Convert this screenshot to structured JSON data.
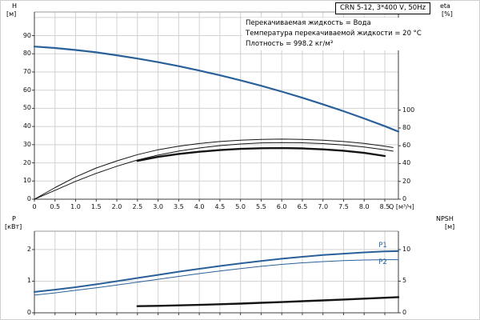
{
  "title_box": {
    "text": "CRN 5-12, 3*400 V, 50Hz"
  },
  "annotations": [
    "Перекачиваемая жидкость = Вода",
    "Температура перекачиваемой жидкости = 20 °C",
    "Плотность = 998.2 кг/м³"
  ],
  "colors": {
    "curve_blue": "#2a6099",
    "curve_black": "#141414",
    "grid": "#d2d2d2",
    "frame": "#9a9a9a",
    "axis": "#3c3c3c",
    "text": "#000000"
  },
  "chart_data": [
    {
      "id": "head-efficiency-chart",
      "type": "line",
      "x_axis": {
        "label": "Q [м³/ч]",
        "min": 0,
        "max": 8.83,
        "ticks": [
          0,
          0.5,
          1,
          1.5,
          2,
          2.5,
          3,
          3.5,
          4,
          4.5,
          5,
          5.5,
          6,
          6.5,
          7,
          7.5,
          8,
          8.5
        ],
        "tick_labels": [
          "0",
          "0.5",
          "1.0",
          "1.5",
          "2.0",
          "2.5",
          "3.0",
          "3.5",
          "4.0",
          "4.5",
          "5.0",
          "5.5",
          "6.0",
          "6.5",
          "7.0",
          "7.5",
          "8.0",
          "8.5"
        ]
      },
      "y_left": {
        "name": "H",
        "unit": "[м]",
        "min": 0,
        "max": 103,
        "ticks": [
          0,
          10,
          20,
          30,
          40,
          50,
          60,
          70,
          80,
          90
        ],
        "grid": [
          10,
          20,
          30,
          40,
          50,
          60,
          70,
          80,
          90,
          100
        ]
      },
      "y_right": {
        "name": "eta",
        "unit": "[%]",
        "scale_to_left": 0.49,
        "ticks": [
          0,
          20,
          40,
          60,
          80,
          100
        ]
      },
      "series": [
        {
          "name": "head-curve",
          "axis": "left",
          "color": "blue",
          "width": 2.2,
          "x": [
            0,
            0.5,
            1,
            1.5,
            2,
            2.5,
            3,
            3.5,
            4,
            4.5,
            5,
            5.5,
            6,
            6.5,
            7,
            7.5,
            8,
            8.5,
            8.83
          ],
          "y": [
            84,
            83.2,
            82.1,
            80.8,
            79.2,
            77.4,
            75.4,
            73.2,
            70.8,
            68.2,
            65.4,
            62.4,
            59.2,
            55.8,
            52.2,
            48.4,
            44.4,
            40.2,
            37.2
          ]
        },
        {
          "name": "eta-pump-curve",
          "axis": "right",
          "color": "black",
          "width": 1,
          "x": [
            0,
            0.5,
            1,
            1.5,
            2,
            2.5,
            3,
            3.5,
            4,
            4.5,
            5,
            5.5,
            6,
            6.5,
            7,
            7.5,
            8,
            8.5,
            8.7
          ],
          "y": [
            0,
            13,
            25,
            35,
            43,
            50,
            55.5,
            59.5,
            62.5,
            64.8,
            66.3,
            67.2,
            67.5,
            67.2,
            66.3,
            64.8,
            62.6,
            59.5,
            58
          ]
        },
        {
          "name": "eta-pump-motor-curve",
          "axis": "right",
          "color": "black",
          "width": 1,
          "x": [
            0,
            0.5,
            1,
            1.5,
            2,
            2.5,
            3,
            3.5,
            4,
            4.5,
            5,
            5.5,
            6,
            6.5,
            7,
            7.5,
            8,
            8.5,
            8.7
          ],
          "y": [
            0,
            10,
            20,
            29,
            37,
            44,
            49.5,
            54,
            57.5,
            60.2,
            62,
            63.2,
            63.6,
            63.3,
            62.4,
            60.8,
            58.6,
            55.5,
            54
          ]
        },
        {
          "name": "eta-operating-range-curve",
          "axis": "right",
          "color": "black",
          "width": 2.4,
          "x": [
            2.5,
            3,
            3.5,
            4,
            4.5,
            5,
            5.5,
            6,
            6.5,
            7,
            7.5,
            8,
            8.5
          ],
          "y": [
            43,
            47.5,
            50.8,
            53.3,
            55.2,
            56.5,
            57.2,
            57.4,
            57,
            56,
            54.4,
            52,
            48.5
          ]
        }
      ]
    },
    {
      "id": "power-npsh-chart",
      "type": "line",
      "x_axis": {
        "label": "",
        "min": 0,
        "max": 8.83,
        "ticks": [
          0,
          0.5,
          1,
          1.5,
          2,
          2.5,
          3,
          3.5,
          4,
          4.5,
          5,
          5.5,
          6,
          6.5,
          7,
          7.5,
          8,
          8.5
        ]
      },
      "y_left": {
        "name": "P",
        "unit": "[кВт]",
        "min": 0,
        "max": 2.58,
        "ticks": [
          0,
          1,
          2
        ],
        "grid": [
          1,
          2
        ]
      },
      "y_right": {
        "name": "NPSH",
        "unit": "[м]",
        "scale_to_left": 0.2,
        "ticks": [
          0,
          5,
          10
        ]
      },
      "series": [
        {
          "name": "p1-curve",
          "axis": "left",
          "color": "blue",
          "width": 2,
          "x": [
            0,
            0.5,
            1,
            1.5,
            2,
            2.5,
            3,
            3.5,
            4,
            4.5,
            5,
            5.5,
            6,
            6.5,
            7,
            7.5,
            8,
            8.5,
            8.83
          ],
          "y": [
            0.66,
            0.73,
            0.81,
            0.9,
            1,
            1.1,
            1.2,
            1.3,
            1.39,
            1.48,
            1.56,
            1.64,
            1.71,
            1.77,
            1.83,
            1.87,
            1.91,
            1.94,
            1.95
          ]
        },
        {
          "name": "p2-curve",
          "axis": "left",
          "color": "blue",
          "width": 1,
          "x": [
            0,
            0.5,
            1,
            1.5,
            2,
            2.5,
            3,
            3.5,
            4,
            4.5,
            5,
            5.5,
            6,
            6.5,
            7,
            7.5,
            8,
            8.5,
            8.83
          ],
          "y": [
            0.56,
            0.63,
            0.71,
            0.79,
            0.88,
            0.97,
            1.06,
            1.15,
            1.24,
            1.32,
            1.4,
            1.47,
            1.53,
            1.58,
            1.62,
            1.65,
            1.67,
            1.68,
            1.68
          ]
        },
        {
          "name": "npsh-curve",
          "axis": "right",
          "color": "black",
          "width": 2.4,
          "x": [
            2.5,
            3,
            3.5,
            4,
            4.5,
            5,
            5.5,
            6,
            6.5,
            7,
            7.5,
            8,
            8.5,
            8.83
          ],
          "y": [
            1.05,
            1.1,
            1.17,
            1.25,
            1.35,
            1.46,
            1.58,
            1.7,
            1.83,
            1.96,
            2.1,
            2.24,
            2.38,
            2.48
          ]
        }
      ],
      "series_labels": [
        {
          "id": "p1-series-label",
          "text": "P1",
          "q": 8.35,
          "value": 2.1
        },
        {
          "id": "p2-series-label",
          "text": "P2",
          "q": 8.35,
          "value": 1.58
        }
      ]
    }
  ]
}
